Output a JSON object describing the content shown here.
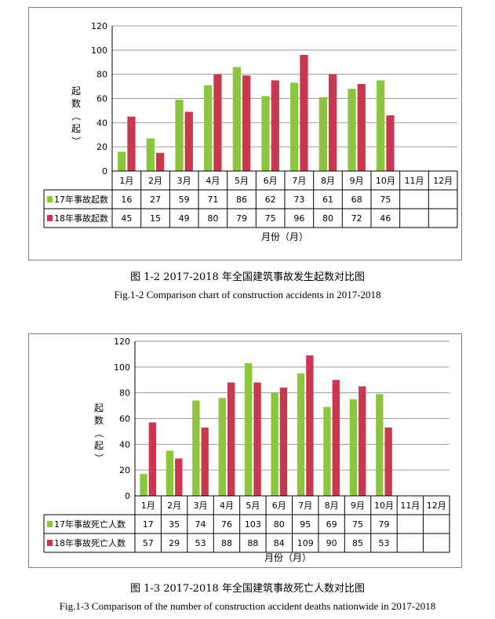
{
  "chart_data": [
    {
      "type": "bar",
      "ylabel": "起数（起）",
      "xlabel": "月份（月）",
      "ylim": [
        0,
        120
      ],
      "yticks": [
        "0",
        "20",
        "40",
        "60",
        "80",
        "100",
        "120"
      ],
      "categories": [
        "1月",
        "2月",
        "3月",
        "4月",
        "5月",
        "6月",
        "7月",
        "8月",
        "9月",
        "10月",
        "11月",
        "12月"
      ],
      "series": [
        {
          "name": "17年事故起数",
          "color": "#8cc63f",
          "values": [
            16,
            27,
            59,
            71,
            86,
            62,
            73,
            61,
            68,
            75,
            null,
            null
          ]
        },
        {
          "name": "18年事故起数",
          "color": "#c8384f",
          "values": [
            45,
            15,
            49,
            80,
            79,
            75,
            96,
            80,
            72,
            46,
            null,
            null
          ]
        }
      ],
      "grid": true,
      "legend": "data-table",
      "caption_cn": "图  1-2 2017-2018 年全国建筑事故发生起数对比图",
      "caption_en": "Fig.1-2 Comparison chart of construction accidents in 2017-2018"
    },
    {
      "type": "bar",
      "ylabel": "起数（起）",
      "xlabel": "月份（月）",
      "ylim": [
        0,
        120
      ],
      "yticks": [
        "0",
        "20",
        "40",
        "60",
        "80",
        "100",
        "120"
      ],
      "categories": [
        "1月",
        "2月",
        "3月",
        "4月",
        "5月",
        "6月",
        "7月",
        "8月",
        "9月",
        "10月",
        "11月",
        "12月"
      ],
      "series": [
        {
          "name": "17年事故死亡人数",
          "color": "#8cc63f",
          "values": [
            17,
            35,
            74,
            76,
            103,
            80,
            95,
            69,
            75,
            79,
            null,
            null
          ]
        },
        {
          "name": "18年事故死亡人数",
          "color": "#c8384f",
          "values": [
            57,
            29,
            53,
            88,
            88,
            84,
            109,
            90,
            85,
            53,
            null,
            null
          ]
        }
      ],
      "grid": true,
      "legend": "data-table",
      "caption_cn": "图  1-3 2017-2018 年全国建筑事故死亡人数对比图",
      "caption_en": "Fig.1-3 Comparison of the number of construction accident deaths nationwide in 2017-2018"
    }
  ]
}
